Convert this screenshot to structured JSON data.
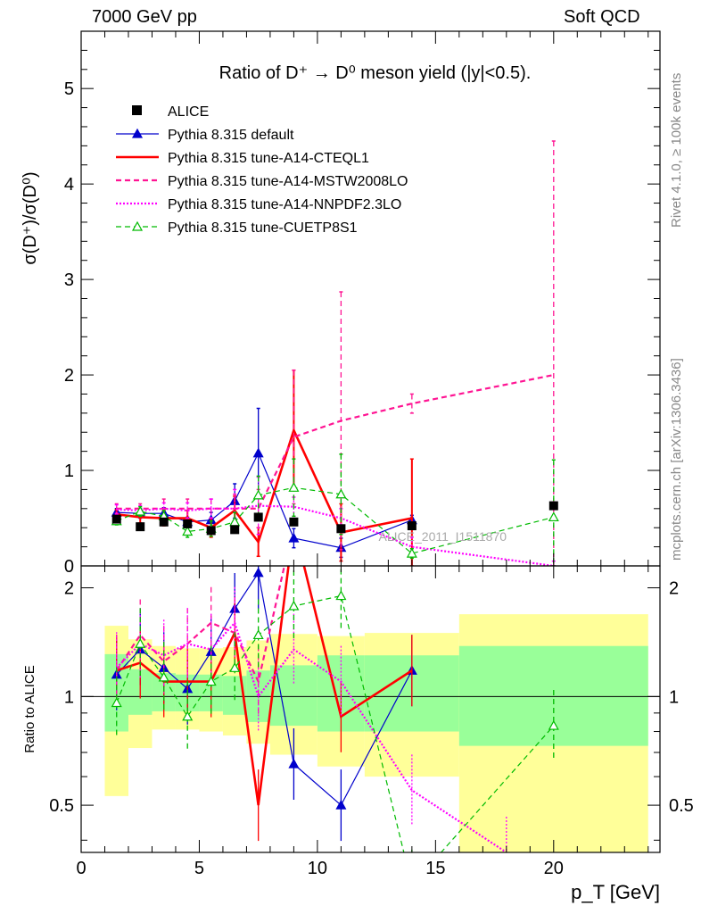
{
  "header": {
    "left": "7000 GeV pp",
    "right": "Soft QCD"
  },
  "side_labels": {
    "rivet": "Rivet 4.1.0, ≥ 100k events",
    "source": "mcplots.cern.ch [arXiv:1306.3436]"
  },
  "chart_data": [
    {
      "type": "line",
      "panel": "main",
      "title": "Ratio of D⁺ → D⁰ meson yield (|y|<0.5).",
      "ylabel": "σ(D⁺)/σ(D⁰)",
      "xlabel": "",
      "xlim": [
        0,
        24.5
      ],
      "ylim": [
        0,
        5.6
      ],
      "yticks": [
        0,
        1,
        2,
        3,
        4,
        5
      ],
      "watermark": "ALICE_2011_I1511870",
      "series": [
        {
          "name": "ALICE",
          "style": "data",
          "color": "#000000",
          "x": [
            1.5,
            2.5,
            3.5,
            4.5,
            5.5,
            6.5,
            7.5,
            9.0,
            11.0,
            14.0,
            20.0
          ],
          "y": [
            0.49,
            0.41,
            0.46,
            0.44,
            0.37,
            0.38,
            0.51,
            0.46,
            0.39,
            0.42,
            0.63
          ]
        },
        {
          "name": "Pythia 8.315 default",
          "style": "solid-triangle",
          "color": "#0000cc",
          "x": [
            1.5,
            2.5,
            3.5,
            4.5,
            5.5,
            6.5,
            7.5,
            9.0,
            11.0,
            14.0
          ],
          "y": [
            0.56,
            0.55,
            0.55,
            0.46,
            0.48,
            0.68,
            1.18,
            0.29,
            0.19,
            0.48
          ],
          "err": [
            0.04,
            0.05,
            0.06,
            0.05,
            0.08,
            0.18,
            0.47,
            0.1,
            0.1,
            0.05
          ]
        },
        {
          "name": "Pythia 8.315 tune-A14-CTEQL1",
          "style": "solid-thick",
          "color": "#ff0000",
          "x": [
            1.5,
            2.5,
            3.5,
            4.5,
            5.5,
            6.5,
            7.5,
            9.0,
            11.0,
            14.0
          ],
          "y": [
            0.54,
            0.51,
            0.5,
            0.5,
            0.4,
            0.58,
            0.25,
            1.42,
            0.35,
            0.5
          ],
          "err": [
            0.05,
            0.06,
            0.08,
            0.08,
            0.1,
            0.15,
            0.15,
            0.63,
            0.3,
            0.62
          ]
        },
        {
          "name": "Pythia 8.315 tune-A14-MSTW2008LO",
          "style": "dashed",
          "color": "#ff1493",
          "x": [
            1.5,
            2.5,
            3.5,
            4.5,
            5.5,
            6.5,
            7.5,
            9.0,
            11.0,
            14.0,
            20.0
          ],
          "y": [
            0.6,
            0.6,
            0.6,
            0.6,
            0.6,
            0.6,
            0.6,
            1.35,
            1.52,
            1.7,
            2.0
          ],
          "err": [
            0.05,
            0.05,
            0.1,
            0.1,
            0.1,
            0.15,
            0.2,
            0.7,
            1.35,
            0.1,
            2.45
          ]
        },
        {
          "name": "Pythia 8.315 tune-A14-NNPDF2.3LO",
          "style": "dotted",
          "color": "#ff00ff",
          "x": [
            1.5,
            2.5,
            3.5,
            4.5,
            5.5,
            6.5,
            7.5,
            9.0,
            11.0,
            14.0,
            20.0
          ],
          "y": [
            0.59,
            0.58,
            0.6,
            0.58,
            0.6,
            0.6,
            0.63,
            0.62,
            0.5,
            0.2,
            0.0
          ],
          "err": [
            0.05,
            0.05,
            0.06,
            0.08,
            0.1,
            0.2,
            0.3,
            0.1,
            0.1,
            0.1,
            0.05
          ]
        },
        {
          "name": "Pythia 8.315 tune-CUETP8S1",
          "style": "dashed-open-triangle",
          "color": "#00bb00",
          "x": [
            1.5,
            2.5,
            3.5,
            4.5,
            5.5,
            6.5,
            7.5,
            9.0,
            11.0,
            14.0,
            20.0
          ],
          "y": [
            0.47,
            0.57,
            0.52,
            0.36,
            0.39,
            0.46,
            0.74,
            0.82,
            0.75,
            0.13,
            0.51
          ],
          "err": [
            0.04,
            0.05,
            0.06,
            0.06,
            0.08,
            0.1,
            0.2,
            0.3,
            0.42,
            0.05,
            0.6
          ]
        }
      ]
    },
    {
      "type": "line",
      "panel": "ratio",
      "ylabel": "Ratio to ALICE",
      "xlabel": "p_T [GeV]",
      "xlim": [
        0,
        24.5
      ],
      "ylim": [
        0.37,
        2.3
      ],
      "yscale": "log",
      "yticks": [
        0.5,
        1,
        2
      ],
      "xticks": [
        0,
        5,
        10,
        15,
        20
      ],
      "reference_line": 1,
      "bands": {
        "edges": [
          1,
          2,
          3,
          4,
          5,
          6,
          7,
          8,
          10,
          12,
          16,
          24
        ],
        "inner_low": [
          0.8,
          0.89,
          0.91,
          0.91,
          0.91,
          0.89,
          0.85,
          0.83,
          0.8,
          0.8,
          0.73
        ],
        "inner_high": [
          1.31,
          1.19,
          1.16,
          1.15,
          1.15,
          1.14,
          1.18,
          1.22,
          1.3,
          1.3,
          1.38
        ],
        "outer_low": [
          0.53,
          0.72,
          0.81,
          0.81,
          0.8,
          0.78,
          0.74,
          0.69,
          0.64,
          0.6,
          0.3
        ],
        "outer_high": [
          1.57,
          1.44,
          1.38,
          1.36,
          1.36,
          1.37,
          1.43,
          1.49,
          1.47,
          1.5,
          1.69
        ],
        "inner_color": "#99ff99",
        "outer_color": "#ffff99"
      },
      "series": [
        {
          "name": "Pythia 8.315 default",
          "color": "#0000cc",
          "x": [
            1.5,
            2.5,
            3.5,
            4.5,
            5.5,
            6.5,
            7.5,
            9.0,
            11.0,
            14.0
          ],
          "y": [
            1.15,
            1.35,
            1.2,
            1.05,
            1.33,
            1.75,
            2.2,
            0.65,
            0.5,
            1.18
          ]
        },
        {
          "name": "Pythia 8.315 tune-A14-CTEQL1",
          "color": "#ff0000",
          "x": [
            1.5,
            2.5,
            3.5,
            4.5,
            5.5,
            6.5,
            7.5,
            9.0,
            11.0,
            14.0
          ],
          "y": [
            1.18,
            1.24,
            1.1,
            1.1,
            1.1,
            1.5,
            0.5,
            3.0,
            0.88,
            1.18
          ]
        },
        {
          "name": "Pythia 8.315 tune-A14-MSTW2008LO",
          "color": "#ff1493",
          "x": [
            1.5,
            2.5,
            3.5,
            4.5,
            5.5,
            6.5,
            7.5,
            9.0
          ],
          "y": [
            1.18,
            1.48,
            1.25,
            1.4,
            1.6,
            1.5,
            1.1,
            3.0
          ]
        },
        {
          "name": "Pythia 8.315 tune-A14-NNPDF2.3LO",
          "color": "#ff00ff",
          "x": [
            1.5,
            2.5,
            3.5,
            4.5,
            5.5,
            6.5,
            7.5,
            9.0,
            11.0,
            14.0,
            18.0
          ],
          "y": [
            1.2,
            1.4,
            1.3,
            1.4,
            1.35,
            1.6,
            1.0,
            1.35,
            1.1,
            0.55,
            0.37
          ]
        },
        {
          "name": "Pythia 8.315 tune-CUETP8S1",
          "color": "#00bb00",
          "x": [
            1.5,
            2.5,
            3.5,
            4.5,
            5.5,
            6.5,
            7.5,
            9.0,
            11.0,
            14.0,
            20.0
          ],
          "y": [
            0.96,
            1.4,
            1.13,
            0.88,
            1.1,
            1.2,
            1.48,
            1.78,
            1.9,
            0.3,
            0.83
          ]
        }
      ]
    }
  ]
}
